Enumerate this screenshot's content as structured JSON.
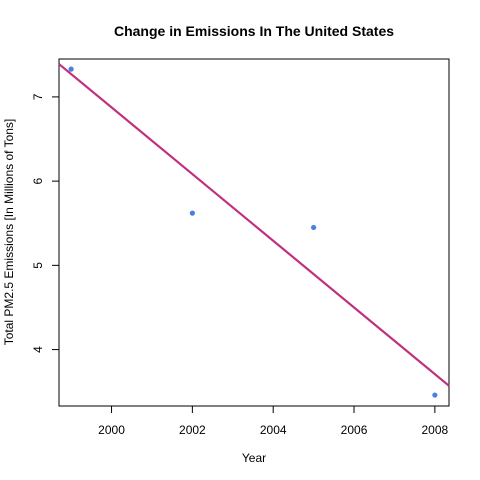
{
  "chart_data": {
    "type": "scatter",
    "title": "Change in Emissions In The United States",
    "xlabel": "Year",
    "ylabel": "Total PM2.5 Emissions [In Millions of Tons]",
    "xlim": [
      1998.7,
      2008.35
    ],
    "ylim": [
      3.33,
      7.45
    ],
    "x_ticks": [
      2000,
      2002,
      2004,
      2006,
      2008
    ],
    "y_ticks": [
      4,
      5,
      6,
      7
    ],
    "grid": false,
    "legend": "none",
    "points": [
      {
        "x": 1999,
        "y": 7.33
      },
      {
        "x": 2002,
        "y": 5.62
      },
      {
        "x": 2005,
        "y": 5.45
      },
      {
        "x": 2008,
        "y": 3.46
      }
    ],
    "trend_line": {
      "type": "linear",
      "start": {
        "x": 1998.7,
        "y": 7.39
      },
      "end": {
        "x": 2008.35,
        "y": 3.57
      }
    },
    "colors": {
      "points": "#4a7fe6",
      "trend_line": "#c0307e",
      "frame": "#000000"
    }
  }
}
